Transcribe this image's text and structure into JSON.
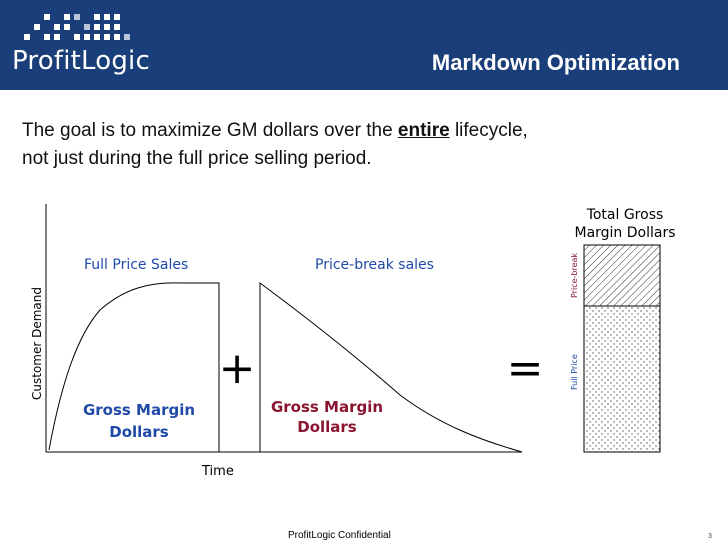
{
  "header": {
    "logo_text": "ProfitLogic",
    "title": "Markdown Optimization",
    "brand_color": "#1a3e79"
  },
  "body": {
    "line1_pre": "The goal is to maximize GM dollars over the ",
    "line1_emph": "entire",
    "line1_post": " lifecycle,",
    "line2": "not just during the full price selling period."
  },
  "diagram": {
    "y_axis_label": "Customer Demand",
    "x_axis_label": "Time",
    "left_panel_title": "Full Price Sales",
    "right_panel_title": "Price-break sales",
    "left_area_label_1": "Gross Margin",
    "left_area_label_2": "Dollars",
    "right_area_label_1": "Gross Margin",
    "right_area_label_2": "Dollars",
    "plus_symbol": "+",
    "equals_symbol": "=",
    "total_title_1": "Total Gross",
    "total_title_2": "Margin Dollars",
    "bar_top_label": "Price-break",
    "bar_bottom_label": "Full Price",
    "left_label_color": "#1f4aa8",
    "right_label_color": "#8b1530"
  },
  "footer": {
    "confidential": "ProfitLogic Confidential",
    "page_number": "3"
  }
}
